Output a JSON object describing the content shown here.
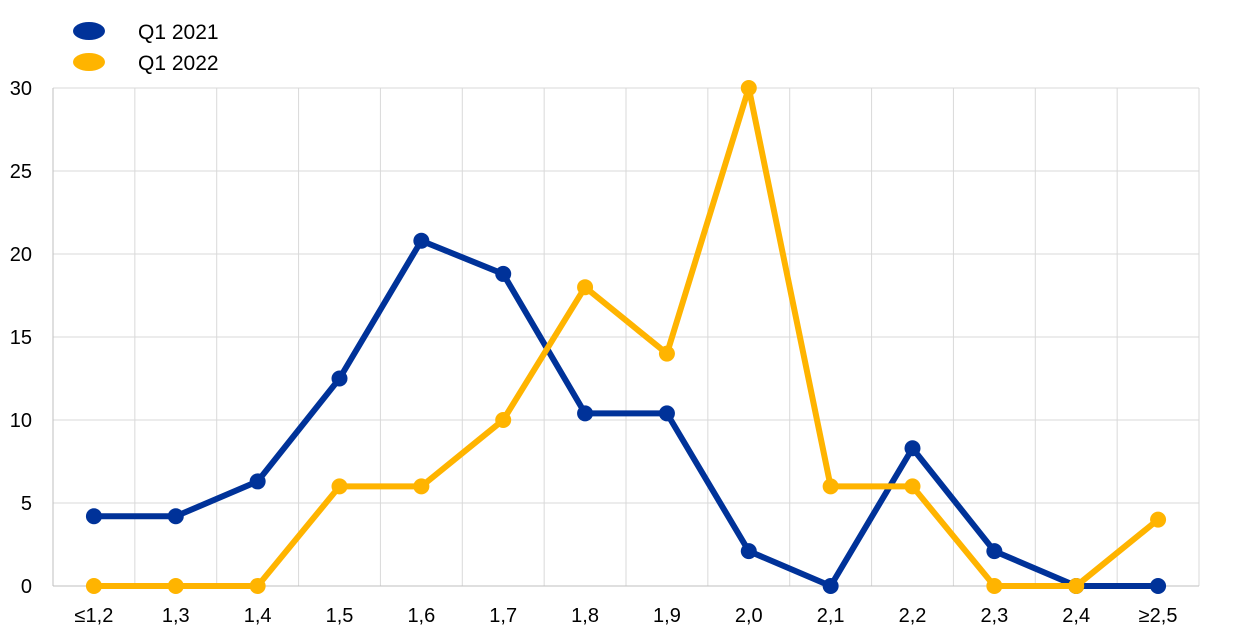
{
  "chart_data": {
    "type": "line",
    "title": "",
    "xlabel": "",
    "ylabel": "",
    "categories": [
      "≤1,2",
      "1,3",
      "1,4",
      "1,5",
      "1,6",
      "1,7",
      "1,8",
      "1,9",
      "2,0",
      "2,1",
      "2,2",
      "2,3",
      "2,4",
      "≥2,5"
    ],
    "ylim": [
      0,
      30
    ],
    "yticks": [
      "0",
      "5",
      "10",
      "15",
      "20",
      "25",
      "30"
    ],
    "grid": true,
    "legend_position": "top-left",
    "series": [
      {
        "name": "Q1 2021",
        "color": "#003299",
        "values": [
          4.2,
          4.2,
          6.3,
          12.5,
          20.8,
          18.8,
          10.4,
          10.4,
          2.1,
          0,
          8.3,
          2.1,
          0,
          0
        ]
      },
      {
        "name": "Q1 2022",
        "color": "#FFB400",
        "values": [
          0,
          0,
          0,
          6,
          6,
          10,
          18,
          14,
          30,
          6,
          6,
          0,
          0,
          4
        ]
      }
    ]
  }
}
